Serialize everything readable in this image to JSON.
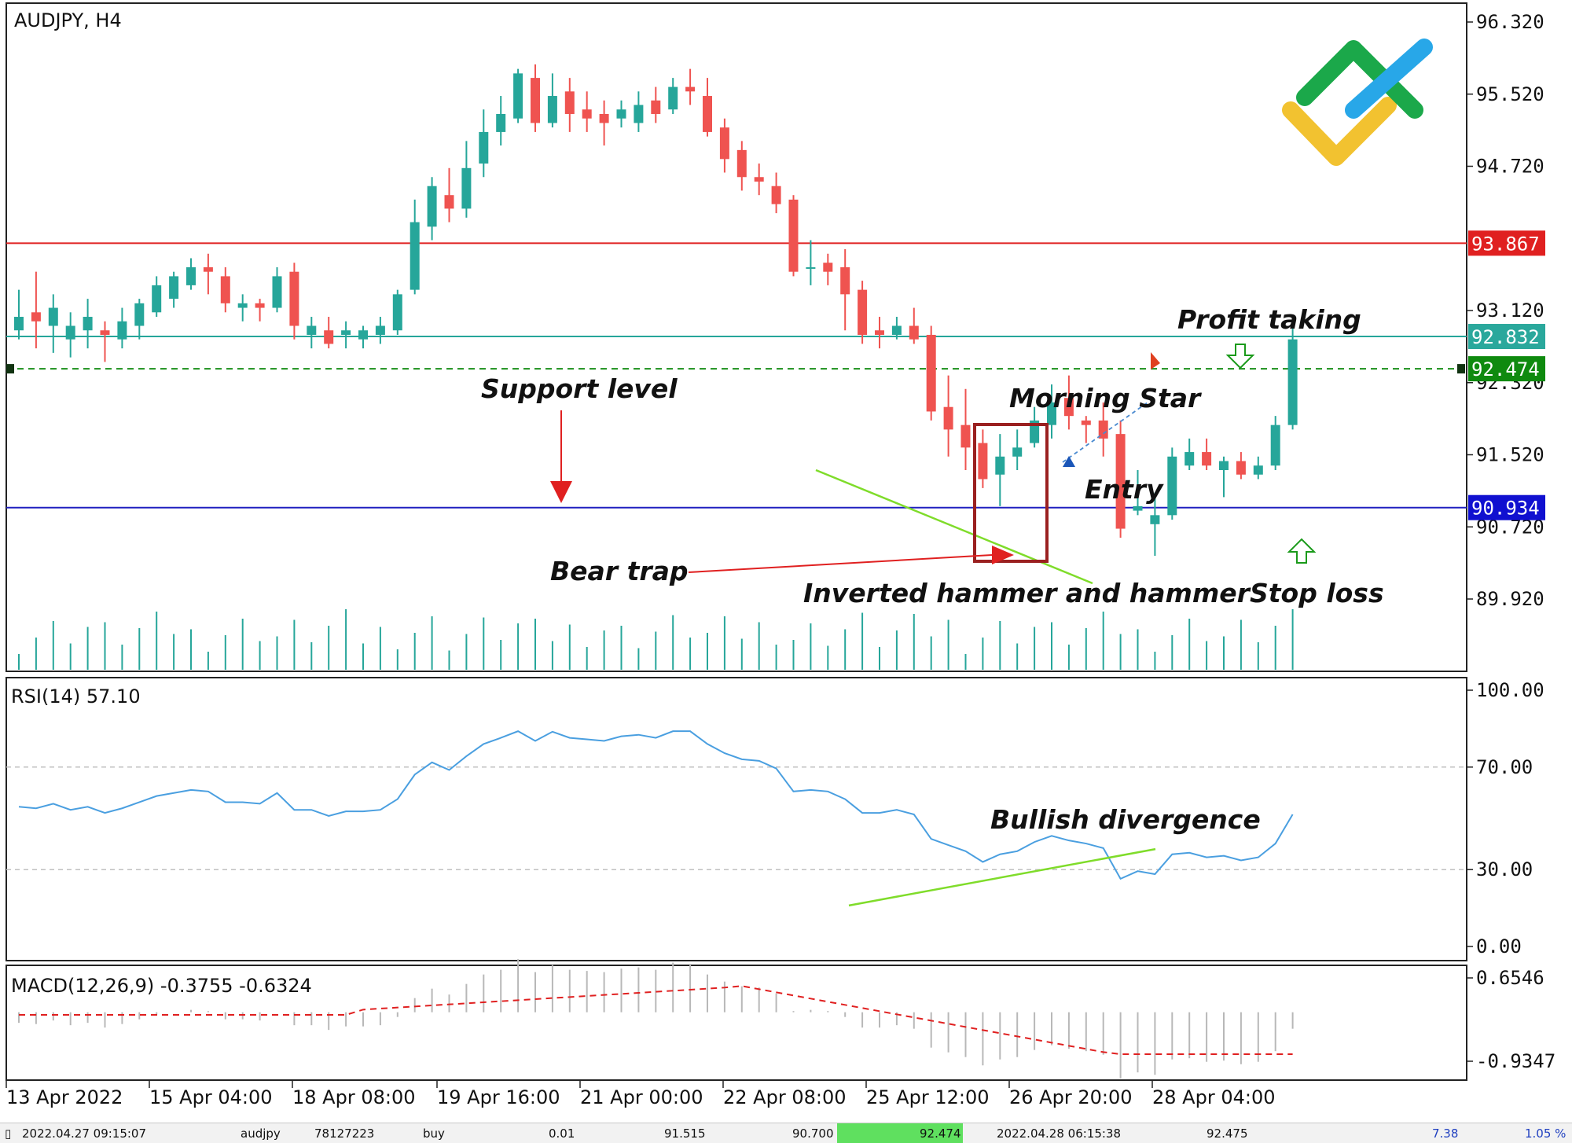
{
  "chart_header": {
    "symbol_timeframe": "AUDJPY, H4"
  },
  "colors": {
    "bull": "#26a69a",
    "bear": "#ef5350",
    "resistance_line": "#e02020",
    "profit_line": "#26a69a",
    "entry_line": "#1a8f1a",
    "support_line": "#2020c0",
    "rsi_line": "#4a9fe0",
    "trendline": "#7fdc2a",
    "macd_signal": "#e02020",
    "macd_hist": "#b8b8b8"
  },
  "price_axis": {
    "ticks": [
      "96.320",
      "95.520",
      "94.720",
      "93.120",
      "92.320",
      "91.520",
      "90.720",
      "89.920"
    ],
    "labels": {
      "resistance": "93.867",
      "profit": "92.832",
      "entry": "92.474",
      "support": "90.934"
    }
  },
  "rsi": {
    "title": "RSI(14) 57.10",
    "ticks": [
      "100.00",
      "70.00",
      "30.00",
      "0.00"
    ]
  },
  "macd": {
    "title": "MACD(12,26,9) -0.3755 -0.6324",
    "ticks": [
      "0.6546",
      "-0.9347"
    ]
  },
  "time_axis": [
    "13 Apr 2022",
    "15 Apr 04:00",
    "18 Apr 08:00",
    "19 Apr 16:00",
    "21 Apr 00:00",
    "22 Apr 08:00",
    "25 Apr 12:00",
    "26 Apr 20:00",
    "28 Apr 04:00"
  ],
  "annotations": {
    "support_level": "Support level",
    "bear_trap": "Bear trap",
    "inverted_hammer": "Inverted hammer and hammer",
    "morning_star": "Morning Star",
    "entry": "Entry",
    "profit_taking": "Profit taking",
    "stop_loss": "Stop loss",
    "bullish_divergence": "Bullish divergence"
  },
  "statusbar": {
    "time": "2022.04.27 09:15:07",
    "symbol": "audjpy",
    "ticket": "78127223",
    "type": "buy",
    "volume": "0.01",
    "sl_price": "91.515",
    "stop": "90.700",
    "take": "92.474",
    "time2": "2022.04.28 06:15:38",
    "price": "92.475",
    "profit": "7.38",
    "percent": "1.05 %"
  },
  "chart_data": {
    "type": "candlestick",
    "title": "AUDJPY, H4",
    "ylim": [
      89.6,
      96.4
    ],
    "levels": [
      93.867,
      92.832,
      92.474,
      90.934
    ],
    "candles": [
      [
        92.9,
        93.35,
        93.05,
        92.8
      ],
      [
        93.1,
        93.55,
        93.0,
        92.7
      ],
      [
        92.95,
        93.3,
        93.15,
        92.65
      ],
      [
        92.8,
        93.1,
        92.95,
        92.6
      ],
      [
        92.9,
        93.25,
        93.05,
        92.7
      ],
      [
        92.9,
        93.0,
        92.85,
        92.55
      ],
      [
        92.8,
        93.15,
        93.0,
        92.7
      ],
      [
        92.95,
        93.25,
        93.2,
        92.8
      ],
      [
        93.1,
        93.5,
        93.4,
        93.05
      ],
      [
        93.25,
        93.55,
        93.5,
        93.15
      ],
      [
        93.4,
        93.7,
        93.6,
        93.35
      ],
      [
        93.6,
        93.75,
        93.55,
        93.3
      ],
      [
        93.5,
        93.6,
        93.2,
        93.1
      ],
      [
        93.15,
        93.3,
        93.2,
        93.0
      ],
      [
        93.2,
        93.25,
        93.15,
        93.0
      ],
      [
        93.15,
        93.6,
        93.5,
        93.1
      ],
      [
        93.55,
        93.65,
        92.95,
        92.8
      ],
      [
        92.85,
        93.05,
        92.95,
        92.7
      ],
      [
        92.9,
        93.05,
        92.75,
        92.7
      ],
      [
        92.85,
        93.0,
        92.9,
        92.7
      ],
      [
        92.8,
        92.95,
        92.9,
        92.7
      ],
      [
        92.85,
        93.05,
        92.95,
        92.75
      ],
      [
        92.9,
        93.35,
        93.3,
        92.85
      ],
      [
        93.35,
        94.35,
        94.1,
        93.3
      ],
      [
        94.05,
        94.6,
        94.5,
        93.9
      ],
      [
        94.4,
        94.7,
        94.25,
        94.1
      ],
      [
        94.25,
        95.0,
        94.7,
        94.15
      ],
      [
        94.75,
        95.35,
        95.1,
        94.6
      ],
      [
        95.1,
        95.5,
        95.3,
        94.95
      ],
      [
        95.25,
        95.8,
        95.75,
        95.2
      ],
      [
        95.7,
        95.85,
        95.2,
        95.1
      ],
      [
        95.2,
        95.75,
        95.5,
        95.15
      ],
      [
        95.55,
        95.7,
        95.3,
        95.1
      ],
      [
        95.35,
        95.55,
        95.25,
        95.1
      ],
      [
        95.3,
        95.45,
        95.2,
        94.95
      ],
      [
        95.25,
        95.45,
        95.35,
        95.15
      ],
      [
        95.2,
        95.55,
        95.4,
        95.1
      ],
      [
        95.45,
        95.6,
        95.3,
        95.2
      ],
      [
        95.35,
        95.7,
        95.6,
        95.3
      ],
      [
        95.6,
        95.8,
        95.55,
        95.4
      ],
      [
        95.5,
        95.7,
        95.1,
        95.05
      ],
      [
        95.15,
        95.25,
        94.8,
        94.65
      ],
      [
        94.9,
        95.0,
        94.6,
        94.45
      ],
      [
        94.6,
        94.75,
        94.55,
        94.4
      ],
      [
        94.5,
        94.65,
        94.3,
        94.2
      ],
      [
        94.35,
        94.4,
        93.55,
        93.5
      ],
      [
        93.6,
        93.9,
        93.6,
        93.4
      ],
      [
        93.65,
        93.75,
        93.55,
        93.4
      ],
      [
        93.6,
        93.8,
        93.3,
        92.9
      ],
      [
        93.35,
        93.45,
        92.85,
        92.75
      ],
      [
        92.9,
        93.05,
        92.85,
        92.7
      ],
      [
        92.85,
        93.05,
        92.95,
        92.8
      ],
      [
        92.95,
        93.15,
        92.8,
        92.75
      ],
      [
        92.85,
        92.95,
        92.0,
        91.9
      ],
      [
        92.05,
        92.4,
        91.8,
        91.5
      ],
      [
        91.85,
        92.25,
        91.6,
        91.35
      ],
      [
        91.65,
        91.8,
        91.25,
        91.15
      ],
      [
        91.3,
        91.75,
        91.5,
        90.95
      ],
      [
        91.5,
        91.8,
        91.6,
        91.35
      ],
      [
        91.65,
        92.05,
        91.9,
        91.6
      ],
      [
        91.85,
        92.3,
        92.1,
        91.7
      ],
      [
        92.15,
        92.4,
        91.95,
        91.8
      ],
      [
        91.9,
        91.95,
        91.85,
        91.65
      ],
      [
        91.9,
        92.1,
        91.7,
        91.5
      ],
      [
        91.75,
        91.9,
        90.7,
        90.6
      ],
      [
        90.9,
        91.35,
        90.95,
        90.85
      ],
      [
        90.75,
        91.1,
        90.85,
        90.4
      ],
      [
        90.85,
        91.6,
        91.5,
        90.8
      ],
      [
        91.4,
        91.7,
        91.55,
        91.35
      ],
      [
        91.55,
        91.7,
        91.4,
        91.35
      ],
      [
        91.35,
        91.5,
        91.45,
        91.05
      ],
      [
        91.45,
        91.55,
        91.3,
        91.25
      ],
      [
        91.3,
        91.5,
        91.4,
        91.25
      ],
      [
        91.4,
        91.95,
        91.85,
        91.35
      ],
      [
        91.85,
        92.95,
        92.8,
        91.8
      ]
    ]
  }
}
